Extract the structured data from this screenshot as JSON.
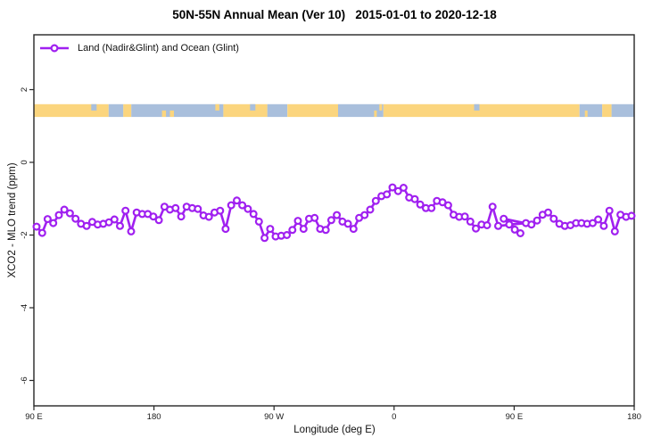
{
  "title": "50N-55N Annual Mean (Ver 10)   2015-01-01 to 2020-12-18",
  "legend": {
    "label": "Land (Nadir&Glint) and Ocean (Glint)"
  },
  "axes": {
    "xlabel": "Longitude (deg E)",
    "ylabel": "XCO2 - MLO trend (ppm)",
    "x_ticks": [
      {
        "deg": 90,
        "label": "90 E"
      },
      {
        "deg": 180,
        "label": "180"
      },
      {
        "deg": 270,
        "label": "90 W"
      },
      {
        "deg": 360,
        "label": "0"
      },
      {
        "deg": 450,
        "label": "90 E"
      },
      {
        "deg": 540,
        "label": "180"
      }
    ],
    "y_ticks": [
      {
        "val": 2,
        "label": "2"
      },
      {
        "val": 0,
        "label": "0"
      },
      {
        "val": -2,
        "label": "-2"
      },
      {
        "val": -4,
        "label": "-4"
      },
      {
        "val": -6,
        "label": "-6"
      }
    ]
  },
  "colors": {
    "line": "#A020F0",
    "marker_fill": "#FFFFFF",
    "land": "#FBD57E",
    "ocean": "#A9BFDC",
    "frame": "#262626",
    "text": "#1A1A1A"
  },
  "chart_data": {
    "type": "line",
    "series_name": "Land (Nadir&Glint) and Ocean (Glint)",
    "title": "50N-55N Annual Mean (Ver 10)   2015-01-01 to 2020-12-18",
    "xlabel": "Longitude (deg E)",
    "ylabel": "XCO2 - MLO trend (ppm)",
    "x_axis_note": "longitude axis wraps: 90E -> 180 -> 90W -> 0 -> 90E -> 180; plot coords run 90..540 deg",
    "xlim": [
      90,
      540
    ],
    "ylim": [
      -6.8,
      3.5
    ],
    "grid": false,
    "legend_position": "top-left, no box",
    "marker": "open-circle",
    "x": [
      92.0,
      96.2,
      100.3,
      104.5,
      108.7,
      112.8,
      117.0,
      121.2,
      125.3,
      129.5,
      133.7,
      137.8,
      142.0,
      146.2,
      150.4,
      154.5,
      158.7,
      162.9,
      167.0,
      171.2,
      175.4,
      179.5,
      183.7,
      187.9,
      192.0,
      196.2,
      200.4,
      204.5,
      208.7,
      212.9,
      217.1,
      221.2,
      225.4,
      229.6,
      233.7,
      237.9,
      242.1,
      246.2,
      250.4,
      254.6,
      258.7,
      262.9,
      267.1,
      271.2,
      275.4,
      279.6,
      283.8,
      287.9,
      292.1,
      296.3,
      300.4,
      304.6,
      308.8,
      312.9,
      317.1,
      321.3,
      325.4,
      329.6,
      333.8,
      337.9,
      342.1,
      346.3,
      350.5,
      354.6,
      358.8,
      363.0,
      367.1,
      371.3,
      375.5,
      379.6,
      383.8,
      388.0,
      392.1,
      396.3,
      400.5,
      404.6,
      408.8,
      413.0,
      417.2,
      421.3,
      425.5,
      429.7,
      433.8,
      438.0,
      458.8,
      446.3,
      450.5,
      454.7,
      442.2,
      463.0,
      467.2,
      471.3,
      475.5,
      479.7,
      483.9,
      488.0,
      492.2,
      496.4,
      500.5,
      504.7,
      508.9,
      513.0,
      517.2,
      521.4,
      525.5,
      529.7,
      533.9,
      538.0
    ],
    "values": [
      -1.77,
      -1.94,
      -1.56,
      -1.67,
      -1.45,
      -1.3,
      -1.4,
      -1.55,
      -1.69,
      -1.75,
      -1.64,
      -1.71,
      -1.69,
      -1.65,
      -1.57,
      -1.75,
      -1.33,
      -1.9,
      -1.38,
      -1.42,
      -1.42,
      -1.49,
      -1.59,
      -1.22,
      -1.3,
      -1.26,
      -1.49,
      -1.22,
      -1.26,
      -1.28,
      -1.46,
      -1.5,
      -1.38,
      -1.33,
      -1.83,
      -1.18,
      -1.05,
      -1.18,
      -1.28,
      -1.42,
      -1.63,
      -2.08,
      -1.83,
      -2.04,
      -2.02,
      -2.0,
      -1.86,
      -1.61,
      -1.83,
      -1.55,
      -1.53,
      -1.83,
      -1.86,
      -1.59,
      -1.45,
      -1.63,
      -1.69,
      -1.83,
      -1.53,
      -1.45,
      -1.3,
      -1.06,
      -0.93,
      -0.88,
      -0.69,
      -0.79,
      -0.7,
      -0.97,
      -1.01,
      -1.16,
      -1.26,
      -1.26,
      -1.06,
      -1.1,
      -1.18,
      -1.44,
      -1.5,
      -1.49,
      -1.63,
      -1.82,
      -1.71,
      -1.73,
      -1.22,
      -1.75,
      -1.67,
      -1.71,
      -1.85,
      -1.95,
      -1.55,
      -1.71,
      -1.6,
      -1.44,
      -1.38,
      -1.55,
      -1.69,
      -1.75,
      -1.73,
      -1.67,
      -1.67,
      -1.69,
      -1.67,
      -1.57,
      -1.75,
      -1.33,
      -1.9,
      -1.44,
      -1.5,
      -1.47
    ],
    "band": {
      "description": "land/ocean strip along 50N-55N",
      "y_from": 1.25,
      "y_to": 1.6,
      "segments": [
        {
          "from": 90,
          "to": 146,
          "type": "land"
        },
        {
          "from": 146,
          "to": 157,
          "type": "ocean"
        },
        {
          "from": 157,
          "to": 163,
          "type": "land"
        },
        {
          "from": 163,
          "to": 232,
          "type": "ocean"
        },
        {
          "from": 232,
          "to": 265,
          "type": "land"
        },
        {
          "from": 265,
          "to": 280,
          "type": "ocean"
        },
        {
          "from": 280,
          "to": 318,
          "type": "land"
        },
        {
          "from": 318,
          "to": 352,
          "type": "ocean"
        },
        {
          "from": 352,
          "to": 499,
          "type": "land"
        },
        {
          "from": 499,
          "to": 516,
          "type": "ocean"
        },
        {
          "from": 516,
          "to": 523,
          "type": "land"
        },
        {
          "from": 523,
          "to": 540,
          "type": "ocean"
        }
      ],
      "details": [
        {
          "from": 133,
          "to": 137,
          "type": "ocean",
          "part": "top"
        },
        {
          "from": 186,
          "to": 189,
          "type": "land",
          "part": "bottom"
        },
        {
          "from": 192,
          "to": 195,
          "type": "land",
          "part": "bottom"
        },
        {
          "from": 226,
          "to": 229,
          "type": "land",
          "part": "top"
        },
        {
          "from": 252,
          "to": 256,
          "type": "ocean",
          "part": "top"
        },
        {
          "from": 345,
          "to": 347,
          "type": "land",
          "part": "bottom"
        },
        {
          "from": 349,
          "to": 351,
          "type": "land",
          "part": "top"
        },
        {
          "from": 420,
          "to": 424,
          "type": "ocean",
          "part": "top"
        },
        {
          "from": 503,
          "to": 505,
          "type": "land",
          "part": "bottom"
        }
      ]
    }
  }
}
